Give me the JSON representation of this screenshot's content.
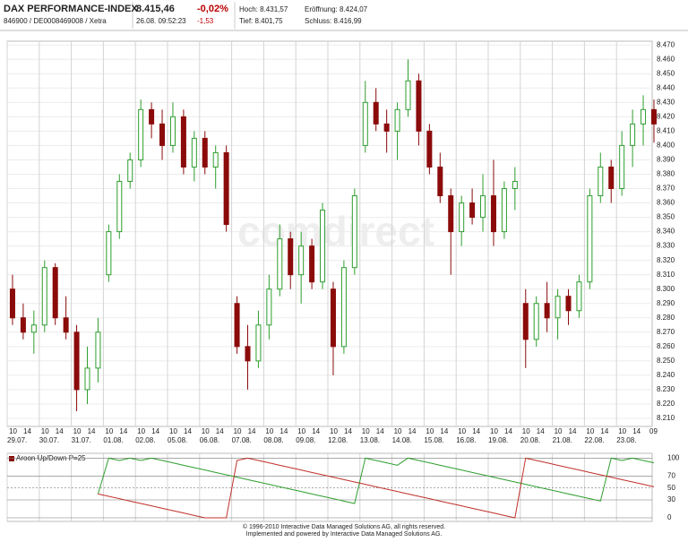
{
  "header": {
    "title": "DAX PERFORMANCE-INDEX",
    "price": "8.415,46",
    "change_pct": "-0,02%",
    "id": "846900 / DE0008469008 / Xetra",
    "time": "26.08. 09:52:23",
    "change": "-1,53",
    "high": "Hoch: 8.431,57",
    "open": "Eröffnung: 8.424,07",
    "low": "Tief: 8.401,75",
    "close": "Schluss: 8.416,99"
  },
  "watermark": "comdirect",
  "footer": [
    "© 1996-2010 Interactive Data Managed Solutions AG, all rights reserved.",
    "Implemented and powered by Interactive Data Managed Solutions AG."
  ],
  "chart_data": [
    {
      "type": "candlestick",
      "up_color": "#2e9e2e",
      "down_color": "#8b0a0a",
      "grid": true,
      "hours": [
        "10",
        "14"
      ],
      "last_hour": "09",
      "dates": [
        "29.07.",
        "30.07.",
        "31.07.",
        "01.08.",
        "02.08.",
        "05.08.",
        "06.08.",
        "07.08.",
        "08.08.",
        "09.08.",
        "12.08.",
        "13.08.",
        "14.08.",
        "15.08.",
        "16.08.",
        "19.08.",
        "20.08.",
        "21.08.",
        "22.08.",
        "23.08."
      ],
      "ylim": [
        8.205,
        8.472
      ],
      "yticks": [
        {
          "value": 8.21,
          "label": "8.210"
        },
        {
          "value": 8.22,
          "label": "8.220"
        },
        {
          "value": 8.23,
          "label": "8.230"
        },
        {
          "value": 8.24,
          "label": "8.240"
        },
        {
          "value": 8.25,
          "label": "8.250"
        },
        {
          "value": 8.26,
          "label": "8.260"
        },
        {
          "value": 8.27,
          "label": "8.270"
        },
        {
          "value": 8.28,
          "label": "8.280"
        },
        {
          "value": 8.29,
          "label": "8.290"
        },
        {
          "value": 8.3,
          "label": "8.300"
        },
        {
          "value": 8.31,
          "label": "8.310"
        },
        {
          "value": 8.32,
          "label": "8.320"
        },
        {
          "value": 8.33,
          "label": "8.330"
        },
        {
          "value": 8.34,
          "label": "8.340"
        },
        {
          "value": 8.35,
          "label": "8.350"
        },
        {
          "value": 8.36,
          "label": "8.360"
        },
        {
          "value": 8.37,
          "label": "8.370"
        },
        {
          "value": 8.38,
          "label": "8.380"
        },
        {
          "value": 8.39,
          "label": "8.390"
        },
        {
          "value": 8.4,
          "label": "8.400"
        },
        {
          "value": 8.41,
          "label": "8.410"
        },
        {
          "value": 8.42,
          "label": "8.420"
        },
        {
          "value": 8.43,
          "label": "8.430"
        },
        {
          "value": 8.44,
          "label": "8.440"
        },
        {
          "value": 8.45,
          "label": "8.450"
        },
        {
          "value": 8.46,
          "label": "8.460"
        },
        {
          "value": 8.47,
          "label": "8.470"
        }
      ],
      "candles": [
        [
          8.3,
          8.31,
          8.275,
          8.28
        ],
        [
          8.28,
          8.29,
          8.265,
          8.27
        ],
        [
          8.27,
          8.285,
          8.255,
          8.275
        ],
        [
          8.275,
          8.32,
          8.27,
          8.315
        ],
        [
          8.315,
          8.318,
          8.275,
          8.28
        ],
        [
          8.28,
          8.295,
          8.265,
          8.27
        ],
        [
          8.27,
          8.275,
          8.215,
          8.23
        ],
        [
          8.23,
          8.26,
          8.22,
          8.245
        ],
        [
          8.245,
          8.28,
          8.235,
          8.27
        ],
        [
          8.31,
          8.345,
          8.305,
          8.34
        ],
        [
          8.34,
          8.38,
          8.335,
          8.375
        ],
        [
          8.375,
          8.395,
          8.37,
          8.39
        ],
        [
          8.39,
          8.432,
          8.385,
          8.425
        ],
        [
          8.425,
          8.43,
          8.405,
          8.415
        ],
        [
          8.415,
          8.425,
          8.39,
          8.4
        ],
        [
          8.4,
          8.43,
          8.395,
          8.42
        ],
        [
          8.42,
          8.425,
          8.38,
          8.385
        ],
        [
          8.385,
          8.41,
          8.375,
          8.405
        ],
        [
          8.405,
          8.41,
          8.38,
          8.385
        ],
        [
          8.385,
          8.4,
          8.37,
          8.395
        ],
        [
          8.395,
          8.4,
          8.34,
          8.345
        ],
        [
          8.29,
          8.295,
          8.255,
          8.26
        ],
        [
          8.26,
          8.275,
          8.23,
          8.25
        ],
        [
          8.25,
          8.285,
          8.245,
          8.275
        ],
        [
          8.275,
          8.31,
          8.265,
          8.3
        ],
        [
          8.3,
          8.345,
          8.295,
          8.335
        ],
        [
          8.335,
          8.34,
          8.3,
          8.31
        ],
        [
          8.31,
          8.34,
          8.29,
          8.33
        ],
        [
          8.33,
          8.335,
          8.3,
          8.305
        ],
        [
          8.305,
          8.36,
          8.3,
          8.355
        ],
        [
          8.3,
          8.305,
          8.24,
          8.26
        ],
        [
          8.26,
          8.32,
          8.255,
          8.315
        ],
        [
          8.315,
          8.37,
          8.31,
          8.365
        ],
        [
          8.4,
          8.445,
          8.395,
          8.43
        ],
        [
          8.43,
          8.44,
          8.41,
          8.415
        ],
        [
          8.415,
          8.425,
          8.395,
          8.41
        ],
        [
          8.41,
          8.43,
          8.39,
          8.425
        ],
        [
          8.425,
          8.46,
          8.42,
          8.445
        ],
        [
          8.445,
          8.45,
          8.4,
          8.41
        ],
        [
          8.41,
          8.415,
          8.38,
          8.385
        ],
        [
          8.385,
          8.395,
          8.36,
          8.365
        ],
        [
          8.365,
          8.37,
          8.31,
          8.34
        ],
        [
          8.34,
          8.365,
          8.33,
          8.36
        ],
        [
          8.36,
          8.37,
          8.345,
          8.35
        ],
        [
          8.35,
          8.38,
          8.34,
          8.365
        ],
        [
          8.365,
          8.39,
          8.33,
          8.34
        ],
        [
          8.34,
          8.375,
          8.335,
          8.37
        ],
        [
          8.37,
          8.385,
          8.355,
          8.375
        ],
        [
          8.29,
          8.3,
          8.245,
          8.265
        ],
        [
          8.265,
          8.295,
          8.26,
          8.29
        ],
        [
          8.29,
          8.305,
          8.27,
          8.28
        ],
        [
          8.28,
          8.3,
          8.265,
          8.295
        ],
        [
          8.295,
          8.3,
          8.275,
          8.285
        ],
        [
          8.285,
          8.31,
          8.28,
          8.305
        ],
        [
          8.305,
          8.37,
          8.3,
          8.365
        ],
        [
          8.365,
          8.395,
          8.36,
          8.385
        ],
        [
          8.385,
          8.39,
          8.36,
          8.37
        ],
        [
          8.37,
          8.41,
          8.365,
          8.4
        ],
        [
          8.4,
          8.425,
          8.385,
          8.415
        ],
        [
          8.415,
          8.435,
          8.4,
          8.425
        ],
        [
          8.425,
          8.432,
          8.402,
          8.415
        ]
      ]
    },
    {
      "type": "line",
      "legend": "Aroon Up/Down P=25",
      "ylim": [
        -3,
        105
      ],
      "yticks": [
        0,
        30,
        50,
        70,
        100
      ],
      "series": [
        {
          "name": "Aroon Up",
          "color": "#2e9e2e",
          "values": [
            null,
            null,
            null,
            null,
            null,
            null,
            null,
            null,
            40,
            100,
            96,
            100,
            96,
            100,
            96,
            92,
            88,
            84,
            80,
            76,
            72,
            68,
            64,
            60,
            56,
            52,
            48,
            44,
            40,
            36,
            32,
            28,
            24,
            100,
            96,
            92,
            88,
            100,
            96,
            92,
            88,
            84,
            80,
            76,
            72,
            68,
            64,
            60,
            56,
            52,
            48,
            44,
            40,
            36,
            32,
            28,
            100,
            96,
            100,
            96,
            92
          ]
        },
        {
          "name": "Aroon Down",
          "color": "#c0302a",
          "values": [
            null,
            null,
            null,
            null,
            null,
            null,
            null,
            null,
            40,
            36,
            32,
            28,
            24,
            20,
            16,
            12,
            8,
            4,
            0,
            0,
            0,
            96,
            100,
            96,
            92,
            88,
            84,
            80,
            76,
            72,
            68,
            64,
            60,
            56,
            52,
            48,
            44,
            40,
            36,
            32,
            28,
            24,
            20,
            16,
            12,
            8,
            4,
            0,
            100,
            96,
            92,
            88,
            84,
            80,
            76,
            72,
            68,
            64,
            60,
            56,
            52
          ]
        }
      ]
    }
  ]
}
